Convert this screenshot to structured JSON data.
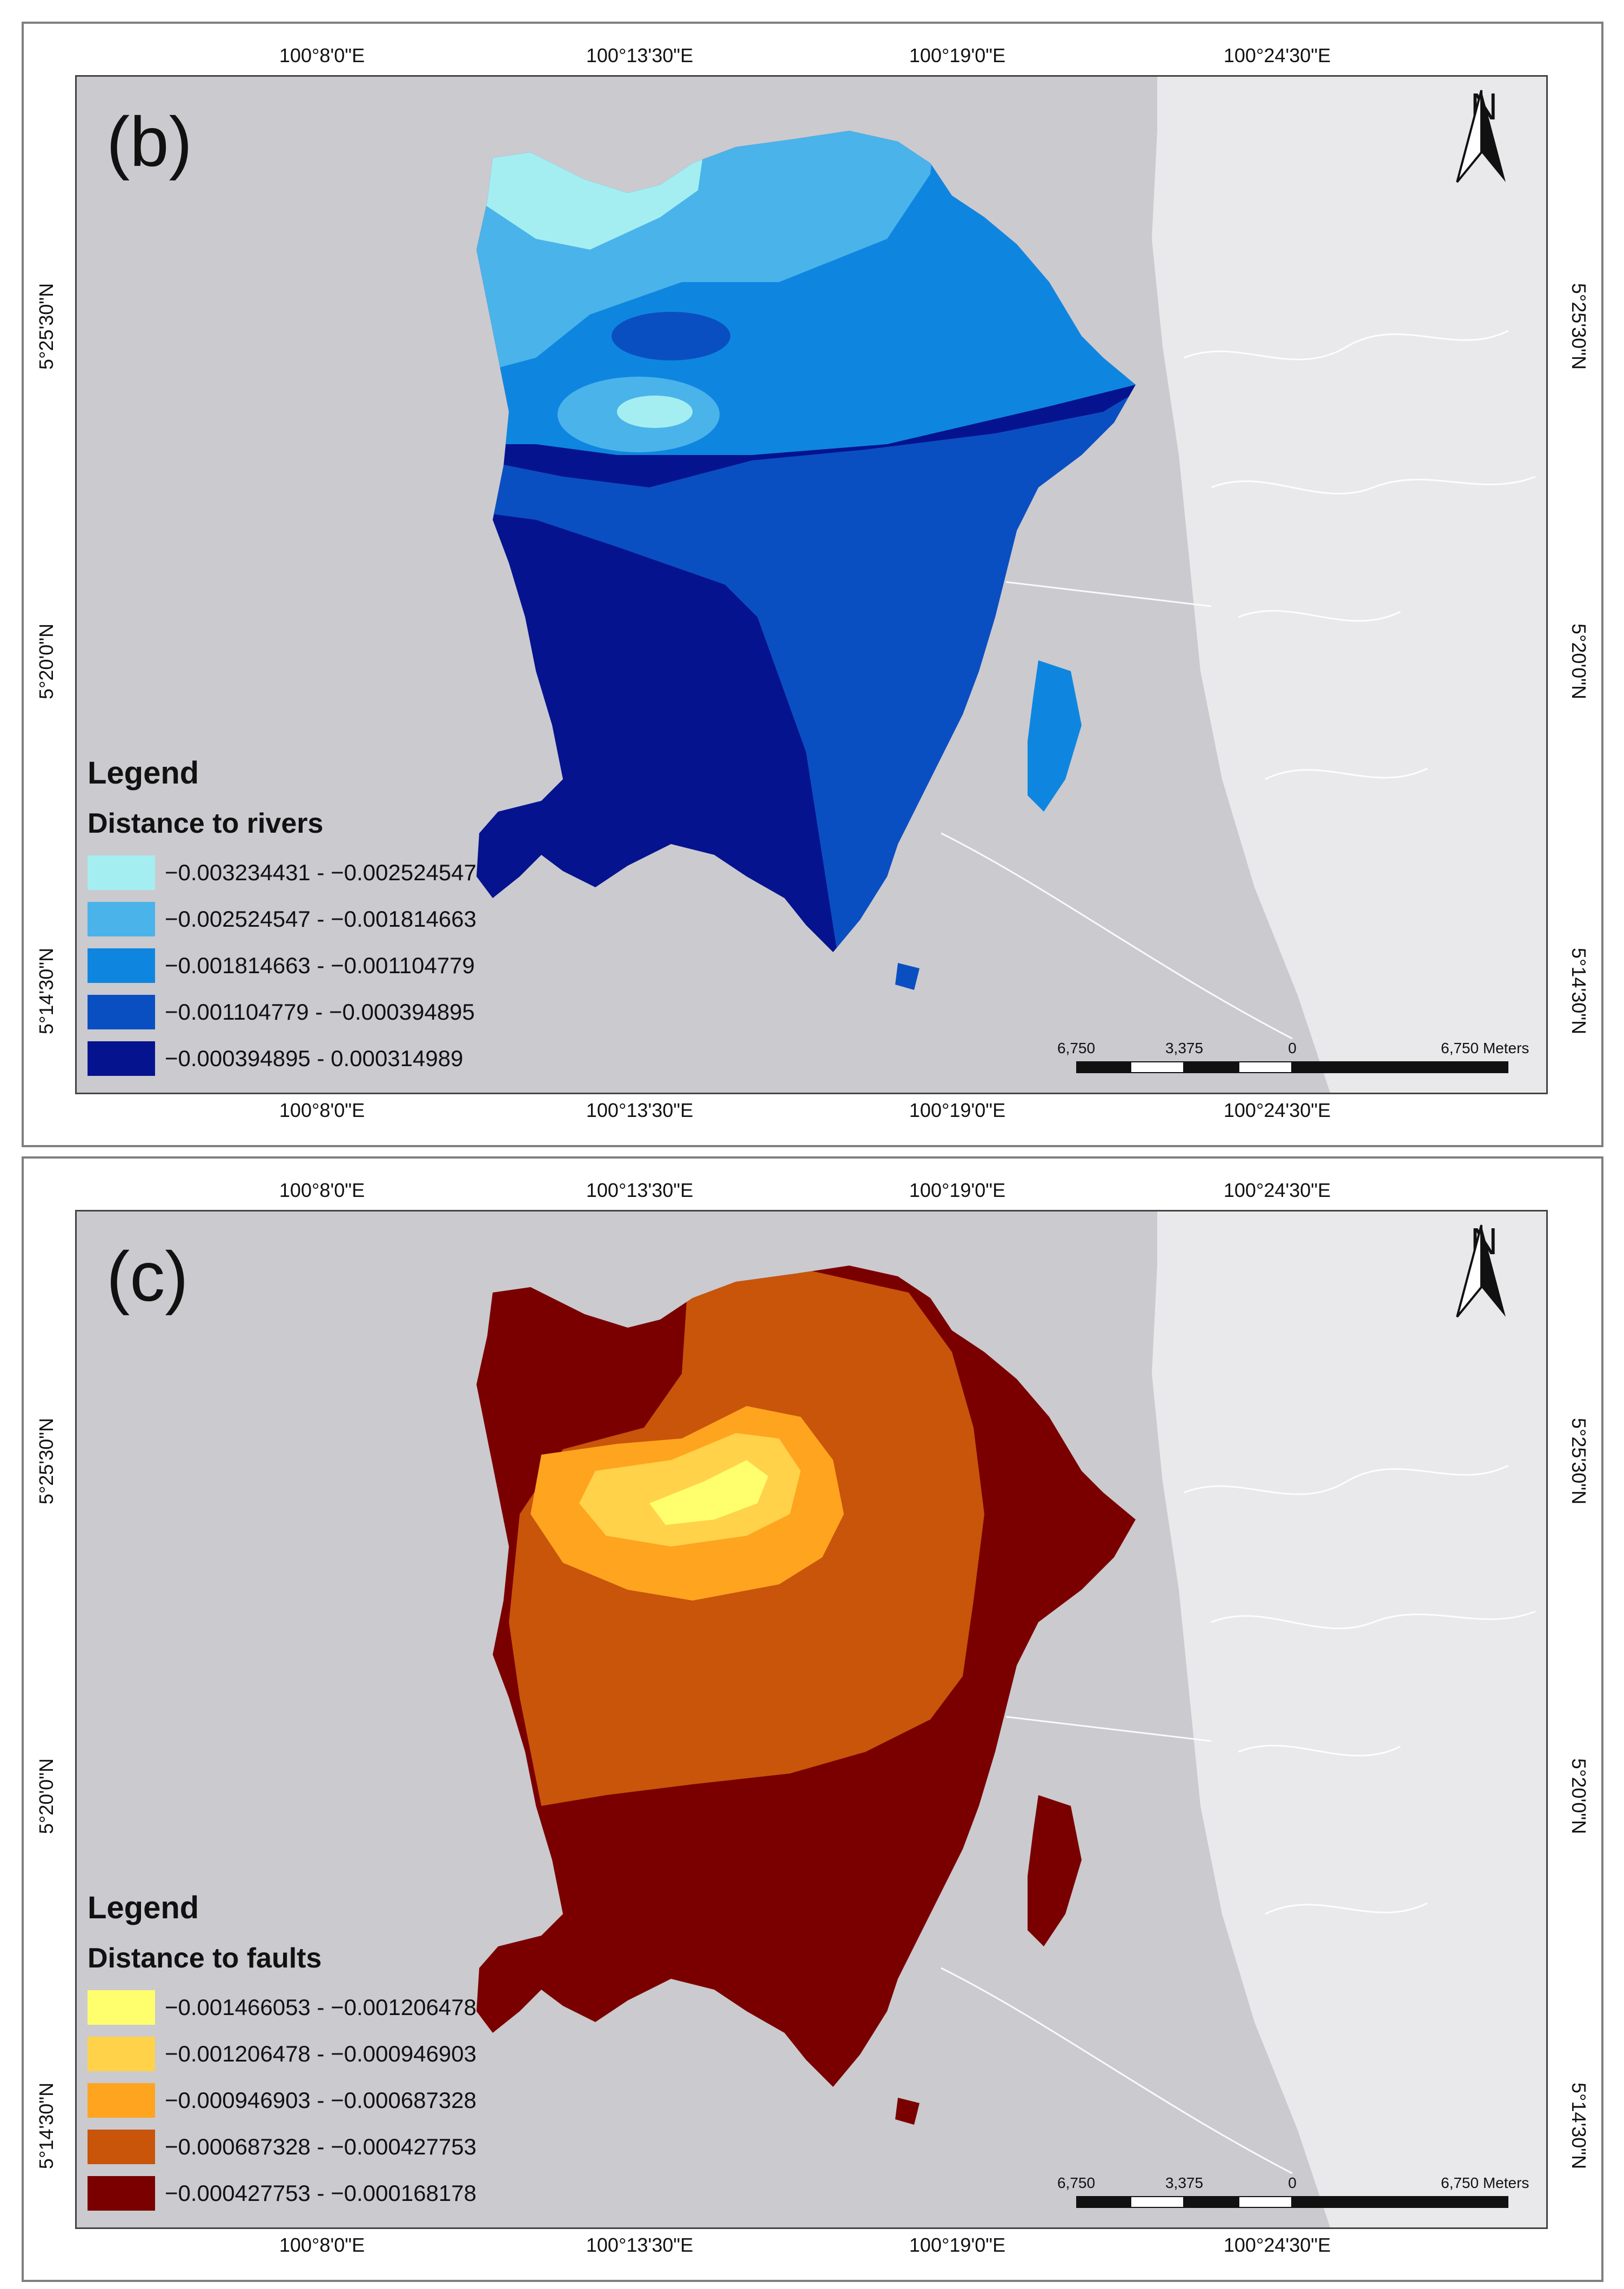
{
  "panels": [
    {
      "id": "b",
      "label": "(b)",
      "legend_title": "Legend",
      "legend_subtitle": "Distance to rivers",
      "classes": [
        {
          "label": "−0.003234431 - −0.002524547",
          "color": "#a4eef2"
        },
        {
          "label": "−0.002524547 - −0.001814663",
          "color": "#4ab3ea"
        },
        {
          "label": "−0.001814663 - −0.001104779",
          "color": "#0e86e0"
        },
        {
          "label": "−0.001104779 - −0.000394895",
          "color": "#0a4fc2"
        },
        {
          "label": "−0.000394895 - 0.000314989",
          "color": "#06138e"
        }
      ]
    },
    {
      "id": "c",
      "label": "(c)",
      "legend_title": "Legend",
      "legend_subtitle": "Distance to faults",
      "classes": [
        {
          "label": "−0.001466053 - −0.001206478",
          "color": "#ffff6e"
        },
        {
          "label": "−0.001206478 - −0.000946903",
          "color": "#ffd24a"
        },
        {
          "label": "−0.000946903 - −0.000687328",
          "color": "#ffa41e"
        },
        {
          "label": "−0.000687328 - −0.000427753",
          "color": "#c8550a"
        },
        {
          "label": "−0.000427753 - −0.000168178",
          "color": "#7a0000"
        }
      ]
    }
  ],
  "axes": {
    "top_bottom": [
      "100°8'0\"E",
      "100°13'30\"E",
      "100°19'0\"E",
      "100°24'30\"E"
    ],
    "left_right": [
      "5°25'30\"N",
      "5°20'0\"N",
      "5°14'30\"N"
    ]
  },
  "north_arrow": "N",
  "scale_bar": {
    "ticks": [
      "6,750",
      "3,375",
      "0",
      "6,750 Meters"
    ]
  },
  "colors": {
    "sea": "#cbcacf",
    "mainland": "#e9e9eb",
    "roads": "#ffffff"
  }
}
